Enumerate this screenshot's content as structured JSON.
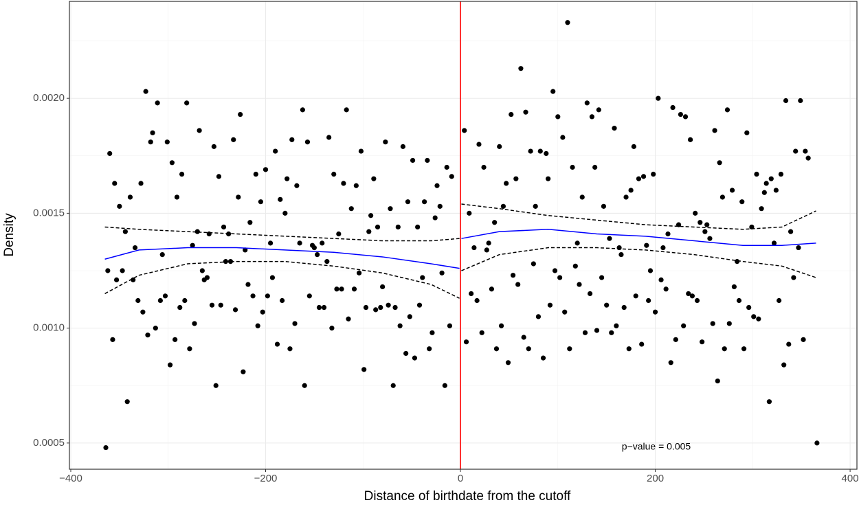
{
  "chart_data": {
    "type": "scatter",
    "xlabel": "Distance of birthdate from the cutoff",
    "ylabel": "Density",
    "annotation": "p−value = 0.005",
    "xlim": [
      -401.4,
      407
    ],
    "ylim": [
      0.000386,
      0.002422
    ],
    "xticks": [
      {
        "value": -400,
        "label": "−400"
      },
      {
        "value": -200,
        "label": "−200"
      },
      0,
      200,
      400
    ],
    "yticks": [
      {
        "value": 0.0005,
        "label": "0.0005"
      },
      {
        "value": 0.001,
        "label": "0.0010"
      },
      {
        "value": 0.0015,
        "label": "0.0015"
      },
      {
        "value": 0.002,
        "label": "0.0020"
      }
    ],
    "xminor": [
      -300,
      -100,
      100,
      300
    ],
    "yminor": [
      0.00075,
      0.00125,
      0.00175,
      0.00225
    ],
    "grid": true,
    "cutoff": 0,
    "cutoff_color": "#ff0000",
    "points": {
      "color": "#000000",
      "x": [
        -364,
        -362,
        -360,
        -357,
        -355,
        -353,
        -350,
        -347,
        -344,
        -342,
        -339,
        -336,
        -334,
        -331,
        -328,
        -326,
        -323,
        -321,
        -318,
        -316,
        -313,
        -311,
        -308,
        -306,
        -303,
        -301,
        -298,
        -296,
        -293,
        -291,
        -288,
        -286,
        -283,
        -281,
        -278,
        -275,
        -273,
        -270,
        -268,
        -265,
        -263,
        -260,
        -258,
        -255,
        -253,
        -251,
        -248,
        -246,
        -243,
        -241,
        -238,
        -236,
        -233,
        -231,
        -228,
        -226,
        -223,
        -221,
        -218,
        -216,
        -213,
        -210,
        -208,
        -205,
        -203,
        -200,
        -198,
        -195,
        -193,
        -190,
        -188,
        -185,
        -183,
        -180,
        -178,
        -175,
        -173,
        -170,
        -168,
        -165,
        -162,
        -160,
        -157,
        -155,
        -152,
        -150,
        -147,
        -145,
        -142,
        -140,
        -137,
        -135,
        -132,
        -130,
        -127,
        -125,
        -122,
        -120,
        -117,
        -115,
        -112,
        -109,
        -107,
        -104,
        -102,
        -99,
        -97,
        -94,
        -92,
        -89,
        -87,
        -85,
        -82,
        -80,
        -77,
        -74,
        -72,
        -69,
        -67,
        -64,
        -62,
        -59,
        -56,
        -54,
        -52,
        -49,
        -47,
        -44,
        -42,
        -39,
        -37,
        -34,
        -32,
        -29,
        -26,
        -24,
        -21,
        -19,
        -16,
        -14,
        -11,
        -9,
        4,
        6,
        9,
        11,
        14,
        17,
        19,
        22,
        24,
        27,
        29,
        32,
        35,
        37,
        40,
        42,
        44,
        47,
        49,
        52,
        54,
        57,
        59,
        62,
        65,
        67,
        70,
        72,
        75,
        77,
        80,
        82,
        85,
        88,
        90,
        92,
        95,
        97,
        100,
        102,
        105,
        107,
        110,
        112,
        115,
        118,
        120,
        122,
        125,
        128,
        130,
        133,
        135,
        138,
        140,
        142,
        145,
        147,
        150,
        153,
        155,
        158,
        160,
        163,
        165,
        168,
        170,
        173,
        175,
        178,
        180,
        183,
        186,
        188,
        191,
        193,
        195,
        198,
        200,
        203,
        206,
        208,
        211,
        213,
        216,
        218,
        221,
        224,
        226,
        229,
        231,
        234,
        236,
        238,
        241,
        243,
        246,
        248,
        251,
        253,
        256,
        259,
        261,
        264,
        266,
        269,
        271,
        274,
        276,
        279,
        281,
        284,
        286,
        289,
        291,
        294,
        296,
        299,
        301,
        304,
        306,
        309,
        312,
        314,
        317,
        319,
        322,
        324,
        327,
        329,
        332,
        334,
        337,
        339,
        342,
        344,
        347,
        349,
        352,
        354,
        357,
        366
      ],
      "y": [
        0.00048,
        0.00125,
        0.00176,
        0.00095,
        0.00163,
        0.00121,
        0.00153,
        0.00125,
        0.00142,
        0.00068,
        0.00157,
        0.00121,
        0.00135,
        0.00112,
        0.00163,
        0.00107,
        0.00203,
        0.00097,
        0.00181,
        0.00185,
        0.001,
        0.00198,
        0.00112,
        0.00132,
        0.00114,
        0.00181,
        0.00084,
        0.00172,
        0.00095,
        0.00157,
        0.00109,
        0.00167,
        0.00112,
        0.00198,
        0.00091,
        0.00136,
        0.00102,
        0.00142,
        0.00186,
        0.00125,
        0.00121,
        0.00122,
        0.00141,
        0.0011,
        0.00179,
        0.00075,
        0.00166,
        0.0011,
        0.00144,
        0.00129,
        0.00141,
        0.00129,
        0.00182,
        0.00108,
        0.00157,
        0.00193,
        0.00081,
        0.00134,
        0.00119,
        0.00146,
        0.00114,
        0.00167,
        0.00101,
        0.00155,
        0.00107,
        0.00169,
        0.00114,
        0.00137,
        0.00122,
        0.00177,
        0.00093,
        0.00156,
        0.00112,
        0.0015,
        0.00165,
        0.00091,
        0.00182,
        0.00102,
        0.00162,
        0.00137,
        0.00195,
        0.00075,
        0.00181,
        0.00114,
        0.00136,
        0.00135,
        0.00132,
        0.00109,
        0.00137,
        0.00109,
        0.00129,
        0.00183,
        0.001,
        0.00167,
        0.00117,
        0.00141,
        0.00117,
        0.00163,
        0.00195,
        0.00104,
        0.00152,
        0.00117,
        0.00162,
        0.00124,
        0.00177,
        0.00082,
        0.00109,
        0.00142,
        0.00149,
        0.00165,
        0.00108,
        0.00144,
        0.00109,
        0.00118,
        0.00181,
        0.0011,
        0.00152,
        0.00075,
        0.00109,
        0.00144,
        0.00101,
        0.00179,
        0.00089,
        0.00155,
        0.00105,
        0.00173,
        0.00087,
        0.00144,
        0.0011,
        0.00122,
        0.00155,
        0.00173,
        0.00091,
        0.00098,
        0.00148,
        0.00162,
        0.00153,
        0.00124,
        0.00075,
        0.0017,
        0.00101,
        0.00166,
        0.00186,
        0.00094,
        0.0015,
        0.00115,
        0.00135,
        0.00112,
        0.0018,
        0.00098,
        0.0017,
        0.00134,
        0.00137,
        0.00117,
        0.00146,
        0.00091,
        0.00179,
        0.00101,
        0.00153,
        0.00163,
        0.00085,
        0.00193,
        0.00123,
        0.00165,
        0.00119,
        0.00213,
        0.00096,
        0.00194,
        0.00091,
        0.00177,
        0.00128,
        0.00153,
        0.00105,
        0.00177,
        0.00087,
        0.00176,
        0.00165,
        0.0011,
        0.00203,
        0.00125,
        0.00192,
        0.00122,
        0.00183,
        0.00107,
        0.00233,
        0.00091,
        0.0017,
        0.00127,
        0.00137,
        0.00119,
        0.00157,
        0.00098,
        0.00198,
        0.00115,
        0.00192,
        0.0017,
        0.00099,
        0.00195,
        0.00122,
        0.00153,
        0.0011,
        0.00139,
        0.00098,
        0.00187,
        0.00101,
        0.00135,
        0.00132,
        0.00109,
        0.00157,
        0.00091,
        0.0016,
        0.00179,
        0.00114,
        0.00165,
        0.00093,
        0.00166,
        0.00136,
        0.00112,
        0.00125,
        0.00167,
        0.00107,
        0.002,
        0.00121,
        0.00135,
        0.00117,
        0.00141,
        0.00085,
        0.00196,
        0.00095,
        0.00145,
        0.00193,
        0.00101,
        0.00192,
        0.00115,
        0.00182,
        0.00114,
        0.0015,
        0.00112,
        0.00146,
        0.00094,
        0.00142,
        0.00145,
        0.00139,
        0.00102,
        0.00186,
        0.00077,
        0.00172,
        0.00157,
        0.00091,
        0.00195,
        0.00102,
        0.0016,
        0.00118,
        0.00129,
        0.00112,
        0.00155,
        0.00091,
        0.00185,
        0.00109,
        0.00144,
        0.00105,
        0.00167,
        0.00104,
        0.00152,
        0.00159,
        0.00163,
        0.00068,
        0.00165,
        0.00137,
        0.0016,
        0.00112,
        0.00167,
        0.00084,
        0.00199,
        0.00093,
        0.00142,
        0.00122,
        0.00177,
        0.00135,
        0.00199,
        0.00095,
        0.00177,
        0.00174,
        0.0005
      ]
    },
    "lines": [
      {
        "color": "#0000ff",
        "dashed": false,
        "x": [
          -365,
          -330,
          -280,
          -230,
          -180,
          -130,
          -80,
          -30,
          -1
        ],
        "values": [
          0.0013,
          0.00134,
          0.00135,
          0.00135,
          0.00134,
          0.00133,
          0.00131,
          0.00128,
          0.00126
        ]
      },
      {
        "color": "#000000",
        "dashed": true,
        "x": [
          -365,
          -330,
          -280,
          -230,
          -180,
          -130,
          -80,
          -30,
          -1
        ],
        "values": [
          0.00144,
          0.00143,
          0.00142,
          0.00141,
          0.0014,
          0.00139,
          0.00138,
          0.00138,
          0.00139
        ]
      },
      {
        "color": "#000000",
        "dashed": true,
        "x": [
          -365,
          -330,
          -280,
          -230,
          -180,
          -130,
          -80,
          -30,
          -1
        ],
        "values": [
          0.00115,
          0.00123,
          0.00128,
          0.00129,
          0.00129,
          0.00127,
          0.00124,
          0.00119,
          0.00113
        ]
      },
      {
        "color": "#0000ff",
        "dashed": false,
        "x": [
          1,
          40,
          90,
          140,
          190,
          240,
          290,
          330,
          365
        ],
        "values": [
          0.00139,
          0.00142,
          0.00143,
          0.00141,
          0.0014,
          0.00138,
          0.00136,
          0.00136,
          0.00137
        ]
      },
      {
        "color": "#000000",
        "dashed": true,
        "x": [
          1,
          40,
          90,
          140,
          190,
          240,
          290,
          330,
          365
        ],
        "values": [
          0.00154,
          0.00152,
          0.00149,
          0.00147,
          0.00145,
          0.00144,
          0.00143,
          0.00144,
          0.00151
        ]
      },
      {
        "color": "#000000",
        "dashed": true,
        "x": [
          1,
          40,
          90,
          140,
          190,
          240,
          290,
          330,
          365
        ],
        "values": [
          0.00125,
          0.00132,
          0.00135,
          0.00135,
          0.00134,
          0.00132,
          0.00129,
          0.00127,
          0.00122
        ]
      }
    ]
  }
}
